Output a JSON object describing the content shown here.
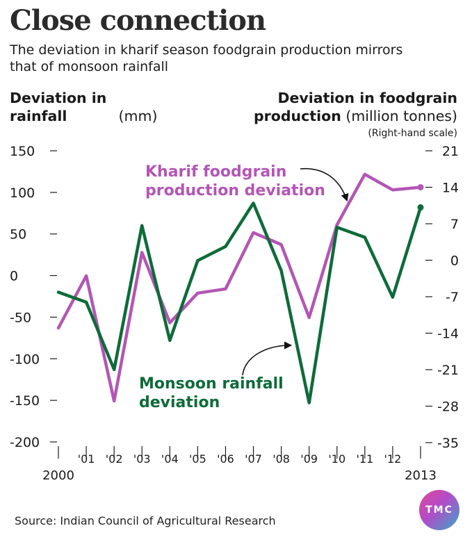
{
  "headline": "Close connection",
  "subtitle": "The deviation in kharif season foodgrain production mirrors that of monsoon rainfall",
  "left_axis": {
    "title_bold": "Deviation in rainfall",
    "title_unit": "(mm)"
  },
  "right_axis": {
    "title_bold_line1": "Deviation in foodgrain",
    "title_bold_line2": "production",
    "title_unit": "(million tonnes)",
    "note": "(Right-hand scale)"
  },
  "source": "Source: Indian Council of Agricultural Research",
  "logo": "TMC",
  "colors": {
    "rainfall": "#0e6b3a",
    "foodgrain": "#b356b5",
    "text": "#1a1a1a"
  },
  "chart_data": {
    "type": "line",
    "x": [
      "2000",
      "'01",
      "'02",
      "'03",
      "'04",
      "'05",
      "'06",
      "'07",
      "'08",
      "'09",
      "'10",
      "'11",
      "'12",
      "2013"
    ],
    "y_left_ticks": [
      "150",
      "100",
      "50",
      "0",
      "-50",
      "-100",
      "-150",
      "-200"
    ],
    "y_right_ticks": [
      "21",
      "14",
      "7",
      "0",
      "-7",
      "-14",
      "-21",
      "-28",
      "-35"
    ],
    "ylim_left": [
      -200,
      150
    ],
    "ylim_right": [
      -35,
      21
    ],
    "series": [
      {
        "name": "Monsoon rainfall deviation",
        "label_line1": "Monsoon rainfall",
        "label_line2": "deviation",
        "axis": "left",
        "values": [
          -20,
          -32,
          -113,
          60,
          -78,
          18,
          35,
          87,
          6,
          -153,
          58,
          46,
          -26,
          82
        ]
      },
      {
        "name": "Kharif foodgrain production deviation",
        "label_line1": "Kharif foodgrain",
        "label_line2": "production deviation",
        "axis": "right",
        "values": [
          -13,
          -3,
          -27,
          1.5,
          -12,
          -6.3,
          -5.5,
          5.3,
          3,
          -11,
          6.8,
          16.5,
          13.5,
          14
        ]
      }
    ]
  }
}
